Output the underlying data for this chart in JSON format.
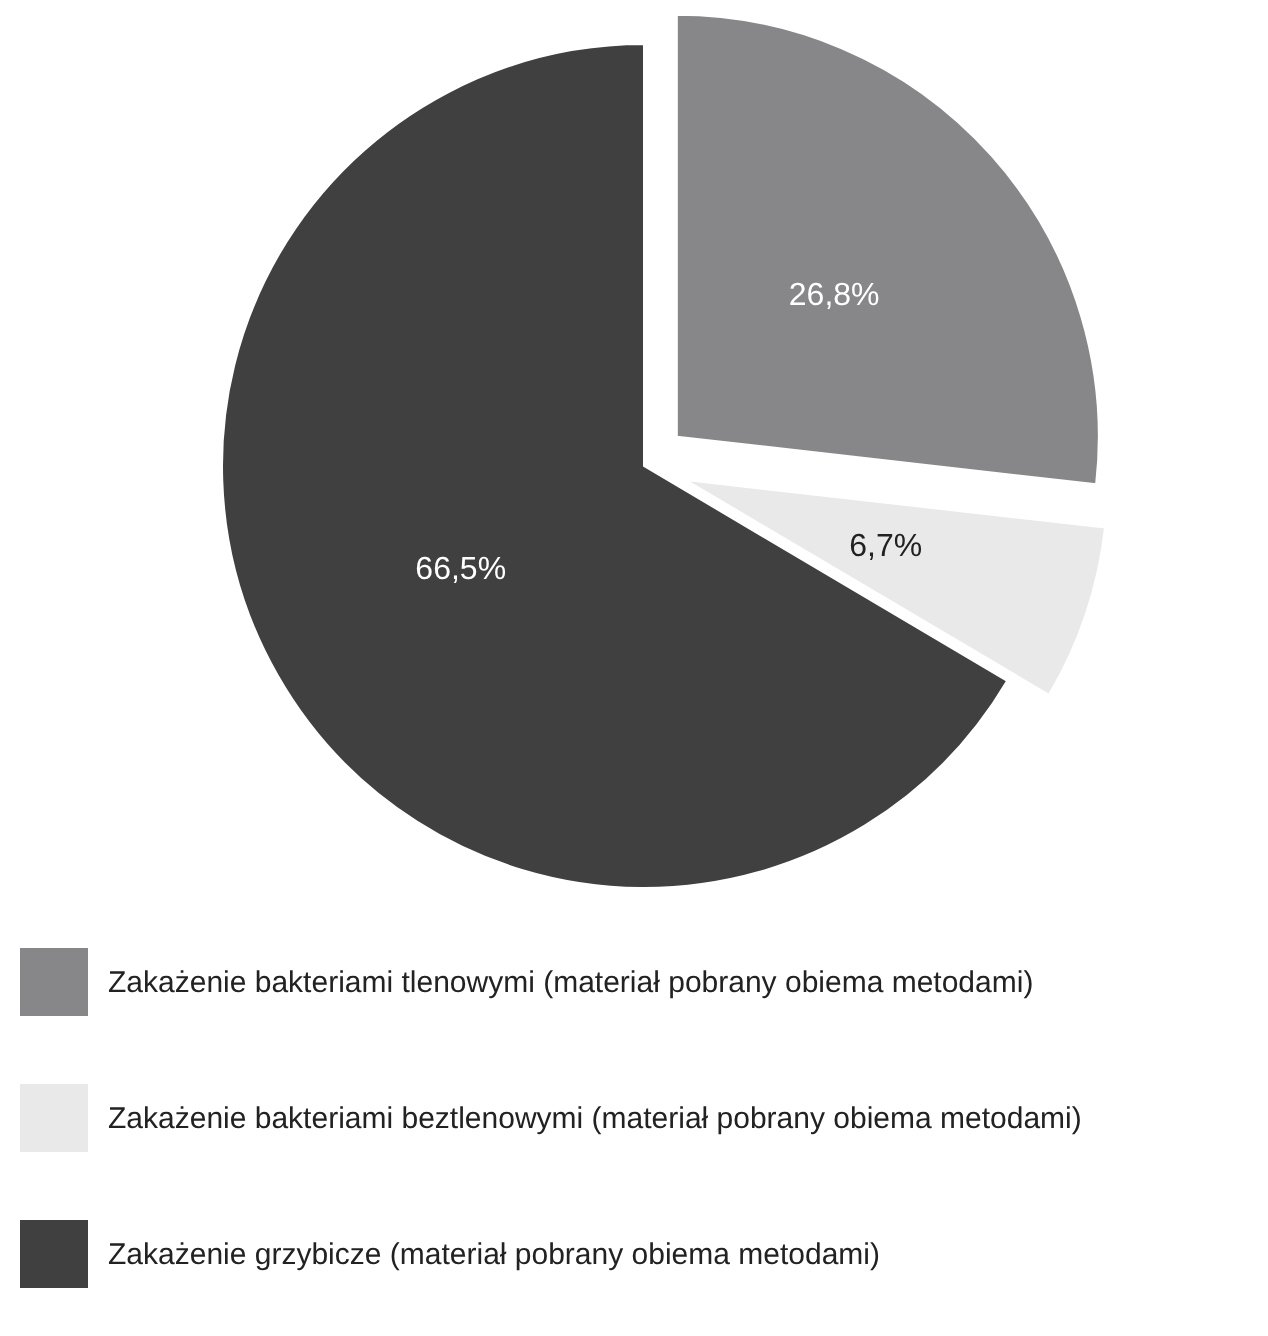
{
  "chart_data": {
    "type": "pie",
    "categories": [
      "Zakażenie bakteriami tlenowymi (materiał pobrany obiema metodami)",
      "Zakażenie bakteriami beztlenowymi (materiał pobrany obiema metodami)",
      "Zakażenie grzybicze (materiał pobrany obiema metodami)"
    ],
    "values": [
      26.8,
      6.7,
      66.5
    ],
    "value_labels": [
      "26,8%",
      "6,7%",
      "66,5%"
    ],
    "colors": [
      "#87878a",
      "#e9e9ea",
      "#404040"
    ],
    "legend": "bottom"
  }
}
